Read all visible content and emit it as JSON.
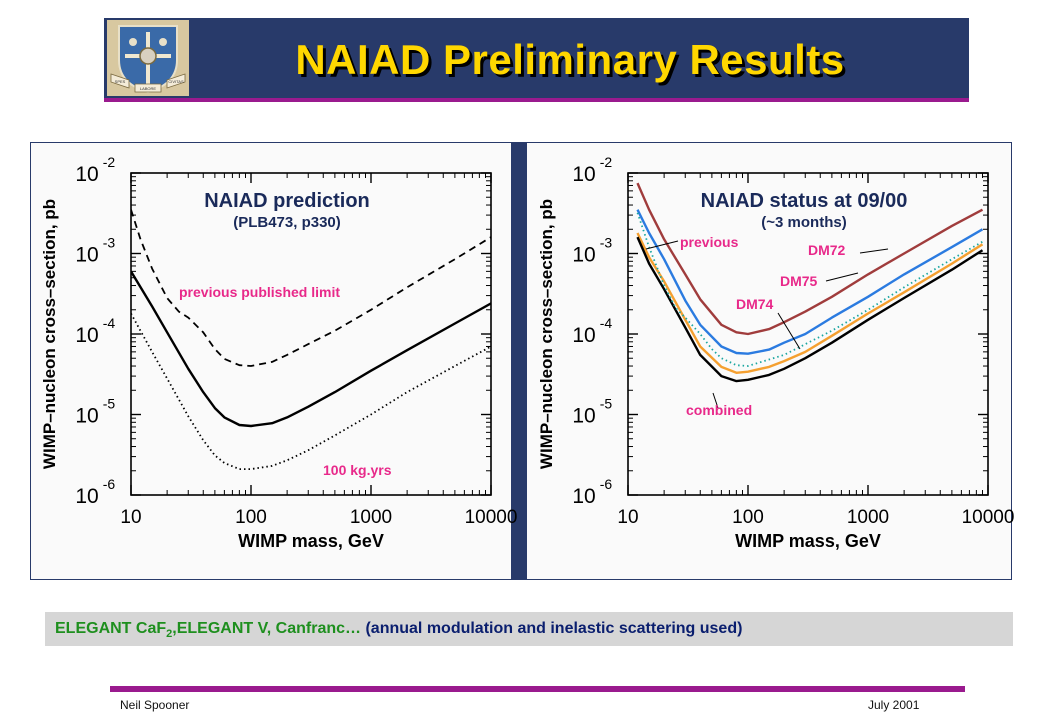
{
  "slide": {
    "title": "NAIAD Preliminary Results",
    "crest_text": [
      "SPES",
      "LABORE",
      "CIVITAS"
    ],
    "caption": {
      "lead": "ELEGANT CaF",
      "sub": "2",
      "rest": ",ELEGANT V, Canfranc…",
      "paren": " (annual modulation and inelastic scattering used)"
    },
    "footer": {
      "author": "Neil Spooner",
      "date": "July 2001"
    },
    "colors": {
      "title_bg": "#283a6a",
      "title_text": "#ffd700",
      "accent": "#9a1a8e",
      "caption_green": "#1e8f1e"
    }
  },
  "chart_data": [
    {
      "type": "line",
      "scale": "log-log",
      "title": "NAIAD prediction",
      "subtitle": "(PLB473, p330)",
      "xlabel": "WIMP mass, GeV",
      "ylabel": "WIMP–nucleon cross–section, pb",
      "xlim": [
        10,
        10000
      ],
      "ylim": [
        1e-06,
        0.01
      ],
      "xticks": [
        "10",
        "100",
        "1000",
        "10000"
      ],
      "yticks": [
        {
          "base": "10",
          "exp": "-6"
        },
        {
          "base": "10",
          "exp": "-5"
        },
        {
          "base": "10",
          "exp": "-4"
        },
        {
          "base": "10",
          "exp": "-3"
        },
        {
          "base": "10",
          "exp": "-2"
        }
      ],
      "series": [
        {
          "name": "previous published limit",
          "style": "dashed",
          "color": "#000000",
          "x": [
            10,
            12,
            15,
            20,
            25,
            30,
            40,
            50,
            60,
            80,
            100,
            150,
            200,
            300,
            500,
            1000,
            2000,
            5000,
            10000
          ],
          "y": [
            0.0035,
            0.0015,
            0.00065,
            0.00028,
            0.00019,
            0.00016,
            0.000105,
            6.5e-05,
            4.9e-05,
            4.1e-05,
            4e-05,
            4.5e-05,
            5.5e-05,
            7.5e-05,
            0.00011,
            0.0002,
            0.00038,
            0.00085,
            0.0016
          ]
        },
        {
          "name": "",
          "style": "solid",
          "color": "#000000",
          "x": [
            10,
            15,
            20,
            30,
            40,
            50,
            60,
            80,
            100,
            150,
            200,
            300,
            500,
            1000,
            2000,
            5000,
            10000
          ],
          "y": [
            0.0006,
            0.00022,
            0.000105,
            3.7e-05,
            1.9e-05,
            1.2e-05,
            9.2e-06,
            7.4e-06,
            7.2e-06,
            7.8e-06,
            9.2e-06,
            1.25e-05,
            1.9e-05,
            3.5e-05,
            6.3e-05,
            0.000135,
            0.00024
          ]
        },
        {
          "name": "100 kg.yrs",
          "style": "dotted",
          "color": "#000000",
          "x": [
            10,
            15,
            20,
            30,
            40,
            50,
            60,
            80,
            100,
            150,
            200,
            300,
            500,
            1000,
            2000,
            5000,
            10000
          ],
          "y": [
            0.00018,
            6e-05,
            2.8e-05,
            9.5e-06,
            4.8e-06,
            3.1e-06,
            2.5e-06,
            2.1e-06,
            2.1e-06,
            2.3e-06,
            2.7e-06,
            3.6e-06,
            5.5e-06,
            1e-05,
            1.9e-05,
            4e-05,
            7e-05
          ]
        }
      ],
      "annotations": [
        {
          "text": "previous published limit",
          "color": "#e8298a"
        },
        {
          "text": "100 kg.yrs",
          "color": "#e8298a"
        }
      ]
    },
    {
      "type": "line",
      "scale": "log-log",
      "title": "NAIAD status at 09/00",
      "subtitle": "(~3 months)",
      "xlabel": "WIMP mass, GeV",
      "ylabel": "WIMP–nucleon cross–section, pb",
      "xlim": [
        10,
        10000
      ],
      "ylim": [
        1e-06,
        0.01
      ],
      "xticks": [
        "10",
        "100",
        "1000",
        "10000"
      ],
      "yticks": [
        {
          "base": "10",
          "exp": "-6"
        },
        {
          "base": "10",
          "exp": "-5"
        },
        {
          "base": "10",
          "exp": "-4"
        },
        {
          "base": "10",
          "exp": "-3"
        },
        {
          "base": "10",
          "exp": "-2"
        }
      ],
      "series": [
        {
          "name": "DM72",
          "style": "solid",
          "color": "#a03c3c",
          "x": [
            12,
            15,
            20,
            30,
            40,
            60,
            80,
            100,
            150,
            200,
            300,
            500,
            1000,
            2000,
            5000,
            9000
          ],
          "y": [
            0.0075,
            0.0035,
            0.0015,
            0.00055,
            0.00027,
            0.00013,
            0.000105,
            0.0001,
            0.000115,
            0.00014,
            0.00019,
            0.00029,
            0.00055,
            0.001,
            0.0022,
            0.0035
          ]
        },
        {
          "name": "DM75",
          "style": "solid",
          "color": "#2b7be0",
          "x": [
            12,
            15,
            20,
            30,
            40,
            60,
            80,
            100,
            150,
            200,
            300,
            500,
            1000,
            2000,
            5000,
            9000
          ],
          "y": [
            0.0035,
            0.0018,
            0.00085,
            0.00026,
            0.00013,
            7e-05,
            5.8e-05,
            5.7e-05,
            6.4e-05,
            7.8e-05,
            0.0001,
            0.00016,
            0.00029,
            0.00055,
            0.0012,
            0.002
          ]
        },
        {
          "name": "DM74",
          "style": "solid",
          "color": "#f5a030",
          "x": [
            12,
            15,
            20,
            30,
            40,
            60,
            80,
            100,
            150,
            200,
            300,
            500,
            1000,
            2000,
            5000,
            9000
          ],
          "y": [
            0.0018,
            0.0009,
            0.00045,
            0.00015,
            7e-05,
            3.9e-05,
            3.3e-05,
            3.4e-05,
            3.9e-05,
            4.6e-05,
            6e-05,
            9.5e-05,
            0.00018,
            0.00033,
            0.00075,
            0.0013
          ]
        },
        {
          "name": "combined",
          "style": "solid",
          "color": "#000000",
          "x": [
            12,
            15,
            20,
            30,
            40,
            60,
            80,
            100,
            150,
            200,
            300,
            500,
            1000,
            2000,
            5000,
            9000
          ],
          "y": [
            0.0016,
            0.00075,
            0.00036,
            0.00012,
            5.5e-05,
            3e-05,
            2.6e-05,
            2.7e-05,
            3.1e-05,
            3.7e-05,
            5e-05,
            7.8e-05,
            0.00015,
            0.00028,
            0.00063,
            0.0011
          ]
        },
        {
          "name": "previous",
          "style": "dotted",
          "color": "#1aa6a0",
          "x": [
            12,
            15,
            20,
            25,
            30,
            40,
            50,
            60,
            80,
            100,
            200,
            500,
            1000,
            2000,
            5000,
            9000
          ],
          "y": [
            0.0032,
            0.0012,
            0.0004,
            0.00021,
            0.00016,
            0.0001,
            6.5e-05,
            5e-05,
            4.1e-05,
            4e-05,
            5.5e-05,
            0.00011,
            0.0002,
            0.00038,
            0.00085,
            0.0014
          ]
        }
      ],
      "annotations": [
        {
          "text": "previous",
          "color": "#e8298a"
        },
        {
          "text": "DM72",
          "color": "#e8298a"
        },
        {
          "text": "DM75",
          "color": "#e8298a"
        },
        {
          "text": "DM74",
          "color": "#e8298a"
        },
        {
          "text": "combined",
          "color": "#e8298a"
        }
      ]
    }
  ]
}
